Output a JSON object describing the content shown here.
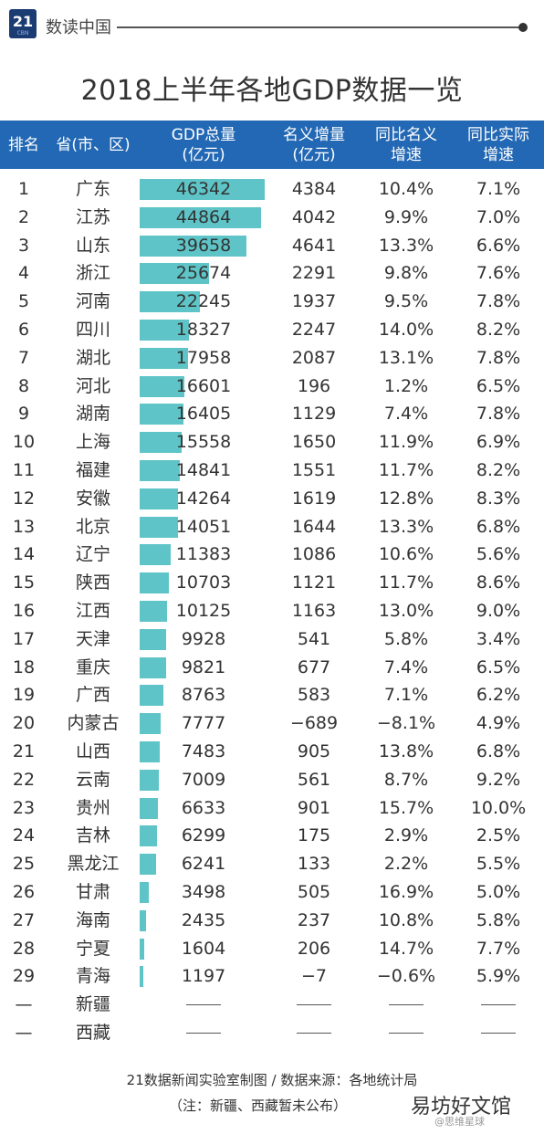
{
  "brand": {
    "logo_number": "21",
    "logo_sub": "CBN",
    "name": "数读中国"
  },
  "title": "2018上半年各地GDP数据一览",
  "columns": [
    "排名",
    "省(市、区)",
    "GDP总量\n(亿元)",
    "名义增量\n(亿元)",
    "同比名义\n增速",
    "同比实际\n增速"
  ],
  "chart_data": {
    "type": "table",
    "title": "2018上半年各地GDP数据一览",
    "gdp_max": 46342,
    "rows": [
      {
        "rank": "1",
        "region": "广东",
        "gdp": 46342,
        "inc": "4384",
        "nominal": "10.4%",
        "real": "7.1%"
      },
      {
        "rank": "2",
        "region": "江苏",
        "gdp": 44864,
        "inc": "4042",
        "nominal": "9.9%",
        "real": "7.0%"
      },
      {
        "rank": "3",
        "region": "山东",
        "gdp": 39658,
        "inc": "4641",
        "nominal": "13.3%",
        "real": "6.6%"
      },
      {
        "rank": "4",
        "region": "浙江",
        "gdp": 25674,
        "inc": "2291",
        "nominal": "9.8%",
        "real": "7.6%"
      },
      {
        "rank": "5",
        "region": "河南",
        "gdp": 22245,
        "inc": "1937",
        "nominal": "9.5%",
        "real": "7.8%"
      },
      {
        "rank": "6",
        "region": "四川",
        "gdp": 18327,
        "inc": "2247",
        "nominal": "14.0%",
        "real": "8.2%"
      },
      {
        "rank": "7",
        "region": "湖北",
        "gdp": 17958,
        "inc": "2087",
        "nominal": "13.1%",
        "real": "7.8%"
      },
      {
        "rank": "8",
        "region": "河北",
        "gdp": 16601,
        "inc": "196",
        "nominal": "1.2%",
        "real": "6.5%"
      },
      {
        "rank": "9",
        "region": "湖南",
        "gdp": 16405,
        "inc": "1129",
        "nominal": "7.4%",
        "real": "7.8%"
      },
      {
        "rank": "10",
        "region": "上海",
        "gdp": 15558,
        "inc": "1650",
        "nominal": "11.9%",
        "real": "6.9%"
      },
      {
        "rank": "11",
        "region": "福建",
        "gdp": 14841,
        "inc": "1551",
        "nominal": "11.7%",
        "real": "8.2%"
      },
      {
        "rank": "12",
        "region": "安徽",
        "gdp": 14264,
        "inc": "1619",
        "nominal": "12.8%",
        "real": "8.3%"
      },
      {
        "rank": "13",
        "region": "北京",
        "gdp": 14051,
        "inc": "1644",
        "nominal": "13.3%",
        "real": "6.8%"
      },
      {
        "rank": "14",
        "region": "辽宁",
        "gdp": 11383,
        "inc": "1086",
        "nominal": "10.6%",
        "real": "5.6%"
      },
      {
        "rank": "15",
        "region": "陕西",
        "gdp": 10703,
        "inc": "1121",
        "nominal": "11.7%",
        "real": "8.6%"
      },
      {
        "rank": "16",
        "region": "江西",
        "gdp": 10125,
        "inc": "1163",
        "nominal": "13.0%",
        "real": "9.0%"
      },
      {
        "rank": "17",
        "region": "天津",
        "gdp": 9928,
        "inc": "541",
        "nominal": "5.8%",
        "real": "3.4%"
      },
      {
        "rank": "18",
        "region": "重庆",
        "gdp": 9821,
        "inc": "677",
        "nominal": "7.4%",
        "real": "6.5%"
      },
      {
        "rank": "19",
        "region": "广西",
        "gdp": 8763,
        "inc": "583",
        "nominal": "7.1%",
        "real": "6.2%"
      },
      {
        "rank": "20",
        "region": "内蒙古",
        "gdp": 7777,
        "inc": "−689",
        "nominal": "−8.1%",
        "real": "4.9%"
      },
      {
        "rank": "21",
        "region": "山西",
        "gdp": 7483,
        "inc": "905",
        "nominal": "13.8%",
        "real": "6.8%"
      },
      {
        "rank": "22",
        "region": "云南",
        "gdp": 7009,
        "inc": "561",
        "nominal": "8.7%",
        "real": "9.2%"
      },
      {
        "rank": "23",
        "region": "贵州",
        "gdp": 6633,
        "inc": "901",
        "nominal": "15.7%",
        "real": "10.0%"
      },
      {
        "rank": "24",
        "region": "吉林",
        "gdp": 6299,
        "inc": "175",
        "nominal": "2.9%",
        "real": "2.5%"
      },
      {
        "rank": "25",
        "region": "黑龙江",
        "gdp": 6241,
        "inc": "133",
        "nominal": "2.2%",
        "real": "5.5%"
      },
      {
        "rank": "26",
        "region": "甘肃",
        "gdp": 3498,
        "inc": "505",
        "nominal": "16.9%",
        "real": "5.0%"
      },
      {
        "rank": "27",
        "region": "海南",
        "gdp": 2435,
        "inc": "237",
        "nominal": "10.8%",
        "real": "5.8%"
      },
      {
        "rank": "28",
        "region": "宁夏",
        "gdp": 1604,
        "inc": "206",
        "nominal": "14.7%",
        "real": "7.7%"
      },
      {
        "rank": "29",
        "region": "青海",
        "gdp": 1197,
        "inc": "−7",
        "nominal": "−0.6%",
        "real": "5.9%"
      },
      {
        "rank": "—",
        "region": "新疆",
        "gdp": null,
        "inc": null,
        "nominal": null,
        "real": null
      },
      {
        "rank": "—",
        "region": "西藏",
        "gdp": null,
        "inc": null,
        "nominal": null,
        "real": null
      }
    ]
  },
  "colors": {
    "header": "#2368b4",
    "bar": "#5ec4c7"
  },
  "footer": {
    "line1": "21数据新闻实验室制图 / 数据来源：各地统计局",
    "line2": "（注：新疆、西藏暂未公布）"
  },
  "watermark": {
    "site": "易坊好文馆",
    "sub": "@思维星球"
  }
}
